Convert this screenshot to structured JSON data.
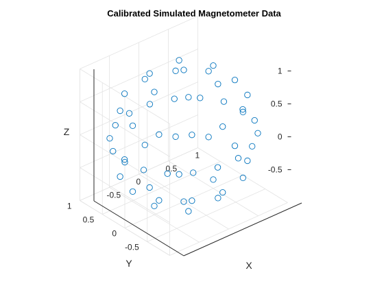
{
  "chart_data": {
    "type": "scatter",
    "projection": "3d",
    "title": "Calibrated Simulated Magnetometer Data",
    "xlabel": "X",
    "ylabel": "Y",
    "zlabel": "Z",
    "xlim": [
      -1,
      1
    ],
    "ylim": [
      -1,
      1
    ],
    "zlim": [
      -1,
      1
    ],
    "x_ticks": [
      {
        "value": -0.5,
        "label": "-0.5"
      },
      {
        "value": 0,
        "label": "0"
      },
      {
        "value": 0.5,
        "label": "0.5"
      },
      {
        "value": 1,
        "label": "1"
      }
    ],
    "y_ticks": [
      {
        "value": 1,
        "label": "1"
      },
      {
        "value": 0.5,
        "label": "0.5"
      },
      {
        "value": 0,
        "label": "0"
      },
      {
        "value": -0.5,
        "label": "-0.5"
      }
    ],
    "z_ticks": [
      {
        "value": 1,
        "label": "1"
      },
      {
        "value": 0.5,
        "label": "0.5"
      },
      {
        "value": 0,
        "label": "0"
      },
      {
        "value": -0.5,
        "label": "-0.5"
      }
    ],
    "grid": true,
    "marker": "circle-open",
    "color": "#0072BD",
    "series": [
      {
        "description": "points lie on the unit sphere (radius 1, centered at origin)",
        "points": [
          [
            0.0,
            0.0,
            1.0
          ],
          [
            0.5,
            0.0,
            0.866
          ],
          [
            0.25,
            0.433,
            0.866
          ],
          [
            -0.25,
            0.433,
            0.866
          ],
          [
            -0.5,
            0.0,
            0.866
          ],
          [
            -0.25,
            -0.433,
            0.866
          ],
          [
            0.25,
            -0.433,
            0.866
          ],
          [
            0.866,
            0.0,
            0.5
          ],
          [
            0.75,
            0.433,
            0.5
          ],
          [
            0.433,
            0.75,
            0.5
          ],
          [
            0.0,
            0.866,
            0.5
          ],
          [
            -0.433,
            0.75,
            0.5
          ],
          [
            -0.75,
            0.433,
            0.5
          ],
          [
            -0.866,
            0.0,
            0.5
          ],
          [
            -0.75,
            -0.433,
            0.5
          ],
          [
            -0.433,
            -0.75,
            0.5
          ],
          [
            0.0,
            -0.866,
            0.5
          ],
          [
            0.433,
            -0.75,
            0.5
          ],
          [
            0.75,
            -0.433,
            0.5
          ],
          [
            1.0,
            0.0,
            0.0
          ],
          [
            0.94,
            0.342,
            0.0
          ],
          [
            0.766,
            0.643,
            0.0
          ],
          [
            0.5,
            0.866,
            0.0
          ],
          [
            0.174,
            0.985,
            0.0
          ],
          [
            -0.174,
            0.985,
            0.0
          ],
          [
            -0.5,
            0.866,
            0.0
          ],
          [
            -0.766,
            0.643,
            0.0
          ],
          [
            -0.94,
            0.342,
            0.0
          ],
          [
            -1.0,
            0.0,
            0.0
          ],
          [
            -0.94,
            -0.342,
            0.0
          ],
          [
            -0.766,
            -0.643,
            0.0
          ],
          [
            -0.5,
            -0.866,
            0.0
          ],
          [
            -0.174,
            -0.985,
            0.0
          ],
          [
            0.174,
            -0.985,
            0.0
          ],
          [
            0.5,
            -0.866,
            0.0
          ],
          [
            0.766,
            -0.643,
            0.0
          ],
          [
            0.94,
            -0.342,
            0.0
          ],
          [
            0.866,
            0.0,
            -0.5
          ],
          [
            0.75,
            0.433,
            -0.5
          ],
          [
            0.433,
            0.75,
            -0.5
          ],
          [
            0.0,
            0.866,
            -0.5
          ],
          [
            -0.433,
            0.75,
            -0.5
          ],
          [
            -0.75,
            0.433,
            -0.5
          ],
          [
            -0.866,
            0.0,
            -0.5
          ],
          [
            -0.75,
            -0.433,
            -0.5
          ],
          [
            -0.433,
            -0.75,
            -0.5
          ],
          [
            0.0,
            -0.866,
            -0.5
          ],
          [
            0.433,
            -0.75,
            -0.5
          ],
          [
            0.75,
            -0.433,
            -0.5
          ],
          [
            0.5,
            0.0,
            -0.866
          ],
          [
            0.25,
            0.433,
            -0.866
          ],
          [
            -0.25,
            0.433,
            -0.866
          ],
          [
            -0.5,
            0.0,
            -0.866
          ],
          [
            -0.25,
            -0.433,
            -0.866
          ],
          [
            0.25,
            -0.433,
            -0.866
          ],
          [
            0.0,
            0.0,
            -1.0
          ]
        ]
      }
    ]
  }
}
